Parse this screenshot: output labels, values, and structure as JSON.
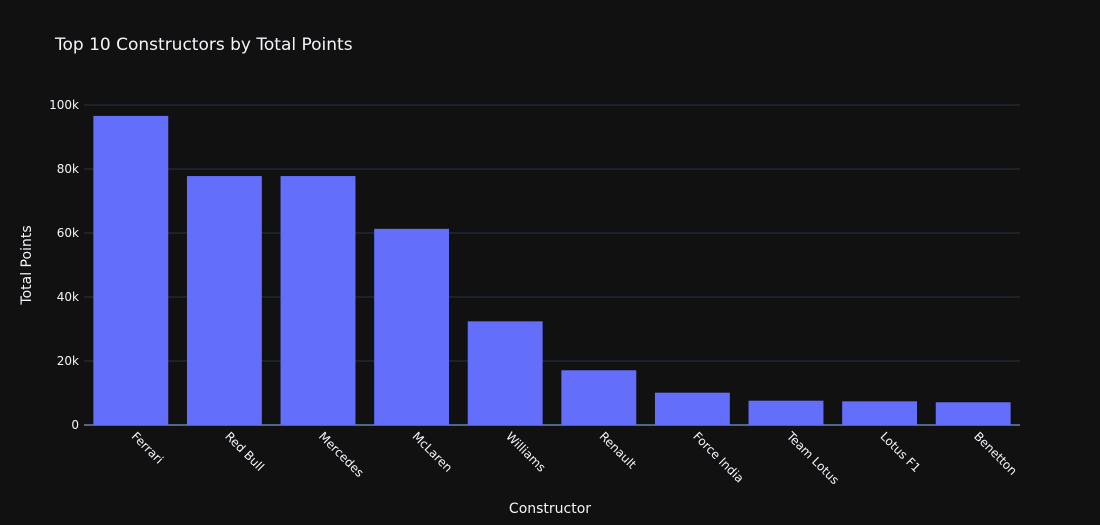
{
  "chart_data": {
    "type": "bar",
    "title": "Top 10 Constructors by Total Points",
    "xlabel": "Constructor",
    "ylabel": "Total Points",
    "categories": [
      "Ferrari",
      "Red Bull",
      "Mercedes",
      "McLaren",
      "Williams",
      "Renault",
      "Force India",
      "Team Lotus",
      "Lotus F1",
      "Benetton"
    ],
    "values": [
      96600,
      77800,
      77800,
      61300,
      32400,
      17100,
      10100,
      7600,
      7400,
      7100
    ],
    "ylim": [
      0,
      100000
    ],
    "yticks": [
      0,
      20000,
      40000,
      60000,
      80000,
      100000
    ],
    "ytick_labels": [
      "0",
      "20k",
      "40k",
      "60k",
      "80k",
      "100k"
    ],
    "grid": true,
    "colors": {
      "background": "#111111",
      "bar": "#636efa",
      "grid": "#283442",
      "text": "#f2f5fa"
    }
  }
}
